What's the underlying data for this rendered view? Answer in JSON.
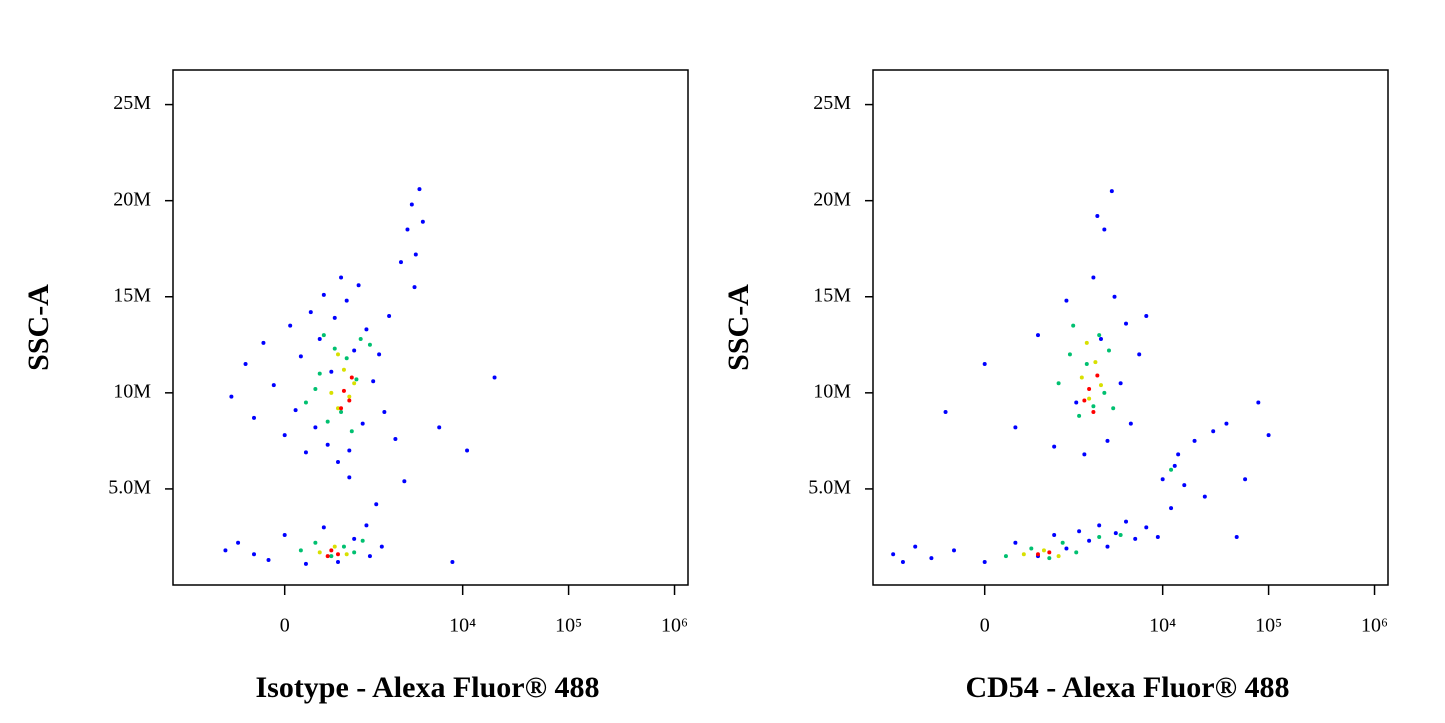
{
  "chart_data": [
    {
      "type": "scatter",
      "x_label": "Isotype - Alexa Fluor® 488",
      "y_label": "SSC-A",
      "xscale": "asinh",
      "xlim": [
        -2350,
        1340000
      ],
      "ylim": [
        0,
        26.8
      ],
      "xticks": [
        0,
        {
          "value": 10000,
          "label": "10⁴"
        },
        {
          "value": 100000,
          "label": "10⁵"
        },
        {
          "value": 1000000,
          "label": "10⁶"
        }
      ],
      "yticks": [
        {
          "value": 5,
          "label": "5.0M"
        },
        {
          "value": 10,
          "label": "10M"
        },
        {
          "value": 15,
          "label": "15M"
        },
        {
          "value": 20,
          "label": "20M"
        },
        {
          "value": 25,
          "label": "25M"
        }
      ],
      "series": [
        {
          "color": "#0000ff",
          "x": [
            -600,
            -400,
            -300,
            -200,
            -100,
            0,
            50,
            100,
            150,
            200,
            250,
            300,
            350,
            400,
            450,
            500,
            550,
            600,
            650,
            750,
            800,
            900,
            1000,
            1100,
            1200,
            1400,
            1600,
            1800,
            2000,
            2300,
            2600,
            3000,
            3300,
            3600,
            3900,
            4200,
            3500,
            2800,
            1500,
            1200,
            800,
            -500,
            -300,
            -150,
            0,
            200,
            400,
            600,
            900,
            1300,
            1700,
            -700,
            8000,
            11000,
            20000,
            6000
          ],
          "values": [
            9.8,
            11.5,
            8.7,
            12.6,
            10.4,
            7.8,
            13.5,
            9.1,
            11.9,
            6.9,
            14.2,
            8.2,
            12.8,
            15.1,
            7.3,
            11.1,
            13.9,
            6.4,
            16.0,
            14.8,
            7.0,
            12.2,
            15.6,
            8.4,
            13.3,
            10.6,
            12.0,
            9.0,
            14.0,
            7.6,
            16.8,
            18.5,
            19.8,
            17.2,
            20.6,
            18.9,
            15.5,
            5.4,
            4.2,
            3.1,
            5.6,
            2.2,
            1.6,
            1.3,
            2.6,
            1.1,
            3.0,
            1.2,
            2.4,
            1.5,
            2.0,
            1.8,
            1.2,
            7.0,
            10.8,
            8.2
          ]
        },
        {
          "color": "#00c070",
          "x": [
            200,
            350,
            450,
            550,
            650,
            750,
            850,
            950,
            1050,
            400,
            300,
            150,
            300,
            500,
            700,
            900,
            1100,
            1300
          ],
          "values": [
            9.5,
            11.0,
            8.5,
            12.3,
            9.0,
            11.8,
            8.0,
            10.7,
            12.8,
            13.0,
            10.2,
            1.8,
            2.2,
            1.5,
            2.0,
            1.7,
            2.3,
            12.5
          ]
        },
        {
          "color": "#d8e000",
          "x": [
            500,
            600,
            700,
            800,
            900,
            600,
            350,
            550,
            750
          ],
          "values": [
            10.0,
            9.2,
            11.2,
            9.8,
            10.5,
            12.0,
            1.7,
            2.0,
            1.6
          ]
        },
        {
          "color": "#ff0000",
          "x": [
            700,
            800,
            650,
            850,
            500,
            600,
            450
          ],
          "values": [
            10.1,
            9.6,
            9.2,
            10.8,
            1.8,
            1.6,
            1.5
          ]
        }
      ]
    },
    {
      "type": "scatter",
      "x_label": "CD54 - Alexa Fluor® 488",
      "y_label": "SSC-A",
      "xscale": "asinh",
      "xlim": [
        -2350,
        1340000
      ],
      "ylim": [
        0,
        26.8
      ],
      "xticks": [
        0,
        {
          "value": 10000,
          "label": "10⁴"
        },
        {
          "value": 100000,
          "label": "10⁵"
        },
        {
          "value": 1000000,
          "label": "10⁶"
        }
      ],
      "yticks": [
        {
          "value": 5,
          "label": "5.0M"
        },
        {
          "value": 10,
          "label": "10M"
        },
        {
          "value": 15,
          "label": "15M"
        },
        {
          "value": 20,
          "label": "20M"
        },
        {
          "value": 25,
          "label": "25M"
        }
      ],
      "series": [
        {
          "color": "#0000ff",
          "x": [
            -1500,
            -1200,
            -900,
            -600,
            -300,
            0,
            300,
            600,
            900,
            1200,
            1600,
            2000,
            2500,
            3000,
            3600,
            4500,
            5500,
            7000,
            9000,
            12000,
            10000,
            14000,
            16000,
            20000,
            13000,
            25000,
            30000,
            40000,
            60000,
            80000,
            50000,
            100000,
            -400,
            0,
            300,
            600,
            900,
            1200,
            1500,
            1800,
            2200,
            2600,
            3000,
            3500,
            4000,
            4500,
            5000,
            6000,
            2800,
            3300,
            2400,
            7000
          ],
          "values": [
            1.6,
            1.2,
            2.0,
            1.4,
            1.8,
            1.2,
            2.2,
            1.5,
            2.6,
            1.9,
            2.8,
            2.3,
            3.1,
            2.0,
            2.7,
            3.3,
            2.4,
            3.0,
            2.5,
            4.0,
            5.5,
            6.8,
            5.2,
            7.5,
            6.2,
            4.6,
            8.0,
            8.4,
            5.5,
            9.5,
            2.5,
            7.8,
            9.0,
            11.5,
            8.2,
            13.0,
            7.2,
            14.8,
            9.5,
            6.8,
            16.0,
            12.8,
            7.5,
            15.0,
            10.5,
            13.6,
            8.4,
            12.0,
            18.5,
            20.5,
            19.2,
            14.0
          ]
        },
        {
          "color": "#00c070",
          "x": [
            1000,
            1300,
            1600,
            1900,
            2200,
            2500,
            2800,
            3100,
            1400,
            3400,
            200,
            500,
            800,
            1100,
            1500,
            2500,
            4000,
            12000
          ],
          "values": [
            10.5,
            12.0,
            8.8,
            11.5,
            9.3,
            13.0,
            10.0,
            12.2,
            13.5,
            9.2,
            1.5,
            1.9,
            1.4,
            2.2,
            1.7,
            2.5,
            2.6,
            6.0
          ]
        },
        {
          "color": "#d8e000",
          "x": [
            1700,
            2000,
            2300,
            2600,
            1900,
            400,
            700,
            1000
          ],
          "values": [
            10.8,
            9.7,
            11.6,
            10.4,
            12.6,
            1.6,
            1.8,
            1.5
          ]
        },
        {
          "color": "#ff0000",
          "x": [
            2000,
            2200,
            1800,
            2400,
            600,
            800
          ],
          "values": [
            10.2,
            9.0,
            9.6,
            10.9,
            1.6,
            1.7
          ]
        }
      ]
    }
  ]
}
